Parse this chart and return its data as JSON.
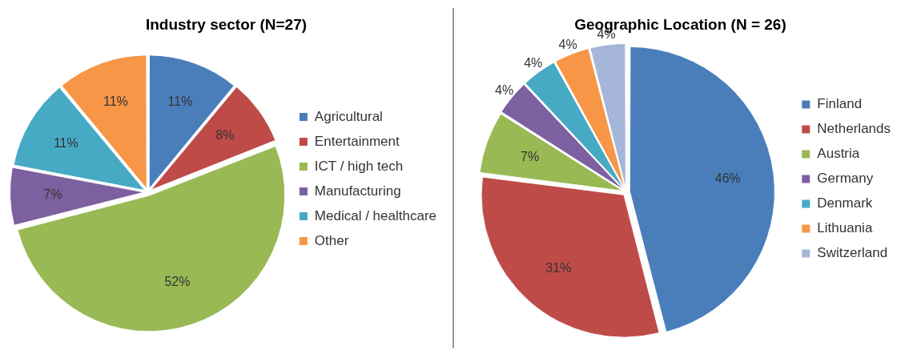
{
  "chart_data": [
    {
      "type": "pie",
      "title": "Industry sector (N=27)",
      "categories": [
        "Agricultural",
        "Entertainment",
        "ICT / high tech",
        "Manufacturing",
        "Medical / healthcare",
        "Other"
      ],
      "values": [
        11,
        8,
        52,
        7,
        11,
        11
      ],
      "colors": [
        "#4a7ebb",
        "#be4b48",
        "#98b954",
        "#7d60a0",
        "#46aac5",
        "#f79646"
      ],
      "value_labels": [
        "11%",
        "8%",
        "52%",
        "7%",
        "11%",
        "11%"
      ],
      "legend": "right"
    },
    {
      "type": "pie",
      "title": "Geographic Location (N = 26)",
      "categories": [
        "Finland",
        "Netherlands",
        "Austria",
        "Germany",
        "Denmark",
        "Lithuania",
        "Switzerland"
      ],
      "values": [
        46,
        31,
        7,
        4,
        4,
        4,
        4
      ],
      "colors": [
        "#4a7ebb",
        "#be4b48",
        "#98b954",
        "#7d60a0",
        "#46aac5",
        "#f79646",
        "#a5b6d9"
      ],
      "value_labels": [
        "46%",
        "31%",
        "7%",
        "4%",
        "4%",
        "4%",
        "4%"
      ],
      "legend": "right"
    }
  ]
}
